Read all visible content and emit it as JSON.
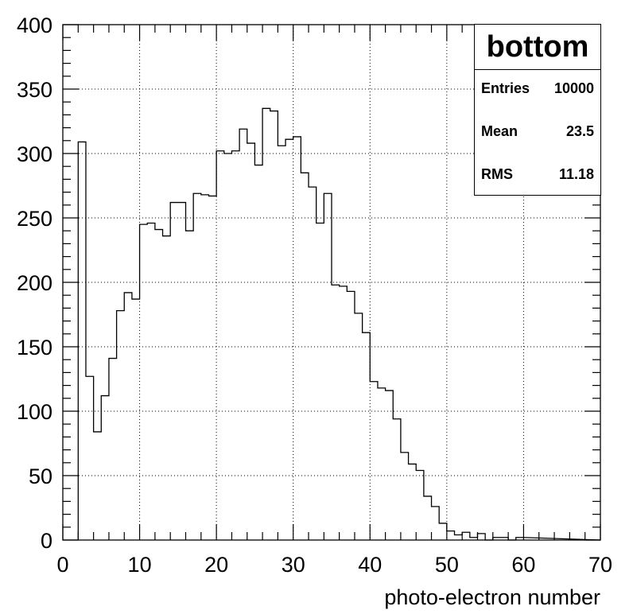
{
  "chart_data": {
    "type": "histogram",
    "title": "bottom",
    "xlabel": "photo-electron number",
    "ylabel": "",
    "xlim": [
      0,
      70
    ],
    "ylim": [
      0,
      400
    ],
    "bin_width": 1,
    "x_ticks": [
      "0",
      "10",
      "20",
      "30",
      "40",
      "50",
      "60",
      "70"
    ],
    "y_ticks": [
      "0",
      "50",
      "100",
      "150",
      "200",
      "250",
      "300",
      "350",
      "400"
    ],
    "grid": true,
    "bins": [
      {
        "x": 2,
        "y": 309
      },
      {
        "x": 3,
        "y": 127
      },
      {
        "x": 4,
        "y": 84
      },
      {
        "x": 5,
        "y": 112
      },
      {
        "x": 6,
        "y": 141
      },
      {
        "x": 7,
        "y": 178
      },
      {
        "x": 8,
        "y": 192
      },
      {
        "x": 9,
        "y": 187
      },
      {
        "x": 10,
        "y": 245
      },
      {
        "x": 11,
        "y": 246
      },
      {
        "x": 12,
        "y": 241
      },
      {
        "x": 13,
        "y": 236
      },
      {
        "x": 14,
        "y": 262
      },
      {
        "x": 15,
        "y": 262
      },
      {
        "x": 16,
        "y": 240
      },
      {
        "x": 17,
        "y": 269
      },
      {
        "x": 18,
        "y": 268
      },
      {
        "x": 19,
        "y": 267
      },
      {
        "x": 20,
        "y": 302
      },
      {
        "x": 21,
        "y": 300
      },
      {
        "x": 22,
        "y": 302
      },
      {
        "x": 23,
        "y": 319
      },
      {
        "x": 24,
        "y": 308
      },
      {
        "x": 25,
        "y": 291
      },
      {
        "x": 26,
        "y": 335
      },
      {
        "x": 27,
        "y": 333
      },
      {
        "x": 28,
        "y": 306
      },
      {
        "x": 29,
        "y": 311
      },
      {
        "x": 30,
        "y": 313
      },
      {
        "x": 31,
        "y": 285
      },
      {
        "x": 32,
        "y": 274
      },
      {
        "x": 33,
        "y": 246
      },
      {
        "x": 34,
        "y": 269
      },
      {
        "x": 35,
        "y": 198
      },
      {
        "x": 36,
        "y": 197
      },
      {
        "x": 37,
        "y": 193
      },
      {
        "x": 38,
        "y": 176
      },
      {
        "x": 39,
        "y": 161
      },
      {
        "x": 40,
        "y": 123
      },
      {
        "x": 41,
        "y": 118
      },
      {
        "x": 42,
        "y": 116
      },
      {
        "x": 43,
        "y": 94
      },
      {
        "x": 44,
        "y": 68
      },
      {
        "x": 45,
        "y": 59
      },
      {
        "x": 46,
        "y": 54
      },
      {
        "x": 47,
        "y": 34
      },
      {
        "x": 48,
        "y": 26
      },
      {
        "x": 49,
        "y": 13
      },
      {
        "x": 50,
        "y": 7
      },
      {
        "x": 51,
        "y": 4
      },
      {
        "x": 52,
        "y": 6
      },
      {
        "x": 53,
        "y": 2
      },
      {
        "x": 54,
        "y": 5
      },
      {
        "x": 55,
        "y": 0
      },
      {
        "x": 56,
        "y": 2
      },
      {
        "x": 57,
        "y": 2
      },
      {
        "x": 58,
        "y": 0
      },
      {
        "x": 59,
        "y": 2
      }
    ],
    "stats": {
      "title": "bottom",
      "entries_label": "Entries",
      "entries_value": "10000",
      "mean_label": "Mean",
      "mean_value": "23.5",
      "rms_label": "RMS",
      "rms_value": "11.18"
    }
  }
}
